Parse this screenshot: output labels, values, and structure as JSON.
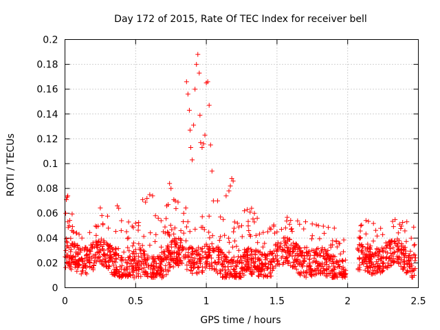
{
  "chart_data": {
    "type": "scatter",
    "title": "Day 172 of 2015, Rate Of TEC Index for receiver bell",
    "xlabel": "GPS time / hours",
    "ylabel": "ROTI / TECUs",
    "xlim": [
      0,
      2.5
    ],
    "ylim": [
      0,
      0.2
    ],
    "xticks": [
      0,
      0.5,
      1,
      1.5,
      2,
      2.5
    ],
    "xtick_labels": [
      "0",
      "0.5",
      "1",
      "1.5",
      "2",
      "2.5"
    ],
    "yticks": [
      0,
      0.02,
      0.04,
      0.06,
      0.08,
      0.1,
      0.12,
      0.14,
      0.16,
      0.18,
      0.2
    ],
    "ytick_labels": [
      "0",
      "0.02",
      "0.04",
      "0.06",
      "0.08",
      "0.1",
      "0.12",
      "0.14",
      "0.16",
      "0.18",
      "0.2"
    ],
    "grid": true,
    "marker": "+",
    "color": "#ff0000",
    "series": [
      {
        "name": "ROTI",
        "points": [
          [
            0.005,
            0.06
          ],
          [
            0.01,
            0.071
          ],
          [
            0.015,
            0.073
          ],
          [
            0.02,
            0.074
          ],
          [
            0.03,
            0.05
          ],
          [
            0.05,
            0.046
          ],
          [
            0.06,
            0.045
          ],
          [
            0.08,
            0.044
          ],
          [
            0.1,
            0.043
          ],
          [
            0.12,
            0.04
          ],
          [
            0.37,
            0.066
          ],
          [
            0.38,
            0.064
          ],
          [
            0.4,
            0.054
          ],
          [
            0.45,
            0.053
          ],
          [
            0.5,
            0.052
          ],
          [
            0.52,
            0.05
          ],
          [
            0.55,
            0.071
          ],
          [
            0.57,
            0.069
          ],
          [
            0.58,
            0.072
          ],
          [
            0.6,
            0.075
          ],
          [
            0.62,
            0.074
          ],
          [
            0.64,
            0.058
          ],
          [
            0.66,
            0.056
          ],
          [
            0.68,
            0.054
          ],
          [
            0.72,
            0.066
          ],
          [
            0.73,
            0.067
          ],
          [
            0.74,
            0.084
          ],
          [
            0.75,
            0.08
          ],
          [
            0.77,
            0.071
          ],
          [
            0.78,
            0.07
          ],
          [
            0.8,
            0.069
          ],
          [
            0.82,
            0.046
          ],
          [
            0.84,
            0.044
          ],
          [
            0.86,
            0.166
          ],
          [
            0.87,
            0.156
          ],
          [
            0.88,
            0.143
          ],
          [
            0.885,
            0.127
          ],
          [
            0.89,
            0.113
          ],
          [
            0.9,
            0.103
          ],
          [
            0.91,
            0.131
          ],
          [
            0.92,
            0.16
          ],
          [
            0.93,
            0.18
          ],
          [
            0.94,
            0.188
          ],
          [
            0.95,
            0.173
          ],
          [
            0.955,
            0.139
          ],
          [
            0.96,
            0.117
          ],
          [
            0.97,
            0.113
          ],
          [
            0.98,
            0.116
          ],
          [
            0.99,
            0.123
          ],
          [
            1.0,
            0.165
          ],
          [
            1.01,
            0.166
          ],
          [
            1.02,
            0.147
          ],
          [
            1.03,
            0.115
          ],
          [
            1.04,
            0.094
          ],
          [
            1.05,
            0.07
          ],
          [
            1.08,
            0.07
          ],
          [
            1.14,
            0.074
          ],
          [
            1.16,
            0.078
          ],
          [
            1.17,
            0.082
          ],
          [
            1.18,
            0.088
          ],
          [
            1.19,
            0.086
          ],
          [
            1.1,
            0.057
          ],
          [
            1.12,
            0.055
          ],
          [
            1.2,
            0.053
          ],
          [
            1.22,
            0.052
          ],
          [
            1.25,
            0.05
          ],
          [
            1.27,
            0.062
          ],
          [
            1.29,
            0.063
          ],
          [
            1.31,
            0.061
          ],
          [
            1.32,
            0.064
          ],
          [
            1.34,
            0.06
          ],
          [
            1.36,
            0.056
          ],
          [
            1.3,
            0.046
          ],
          [
            1.45,
            0.048
          ],
          [
            1.5,
            0.045
          ],
          [
            1.6,
            0.047
          ],
          [
            1.75,
            0.042
          ],
          [
            1.86,
            0.03
          ],
          [
            1.97,
            0.029
          ],
          [
            2.22,
            0.027
          ],
          [
            2.3,
            0.035
          ],
          [
            2.33,
            0.037
          ],
          [
            2.4,
            0.031
          ],
          [
            2.47,
            0.034
          ]
        ]
      }
    ]
  }
}
